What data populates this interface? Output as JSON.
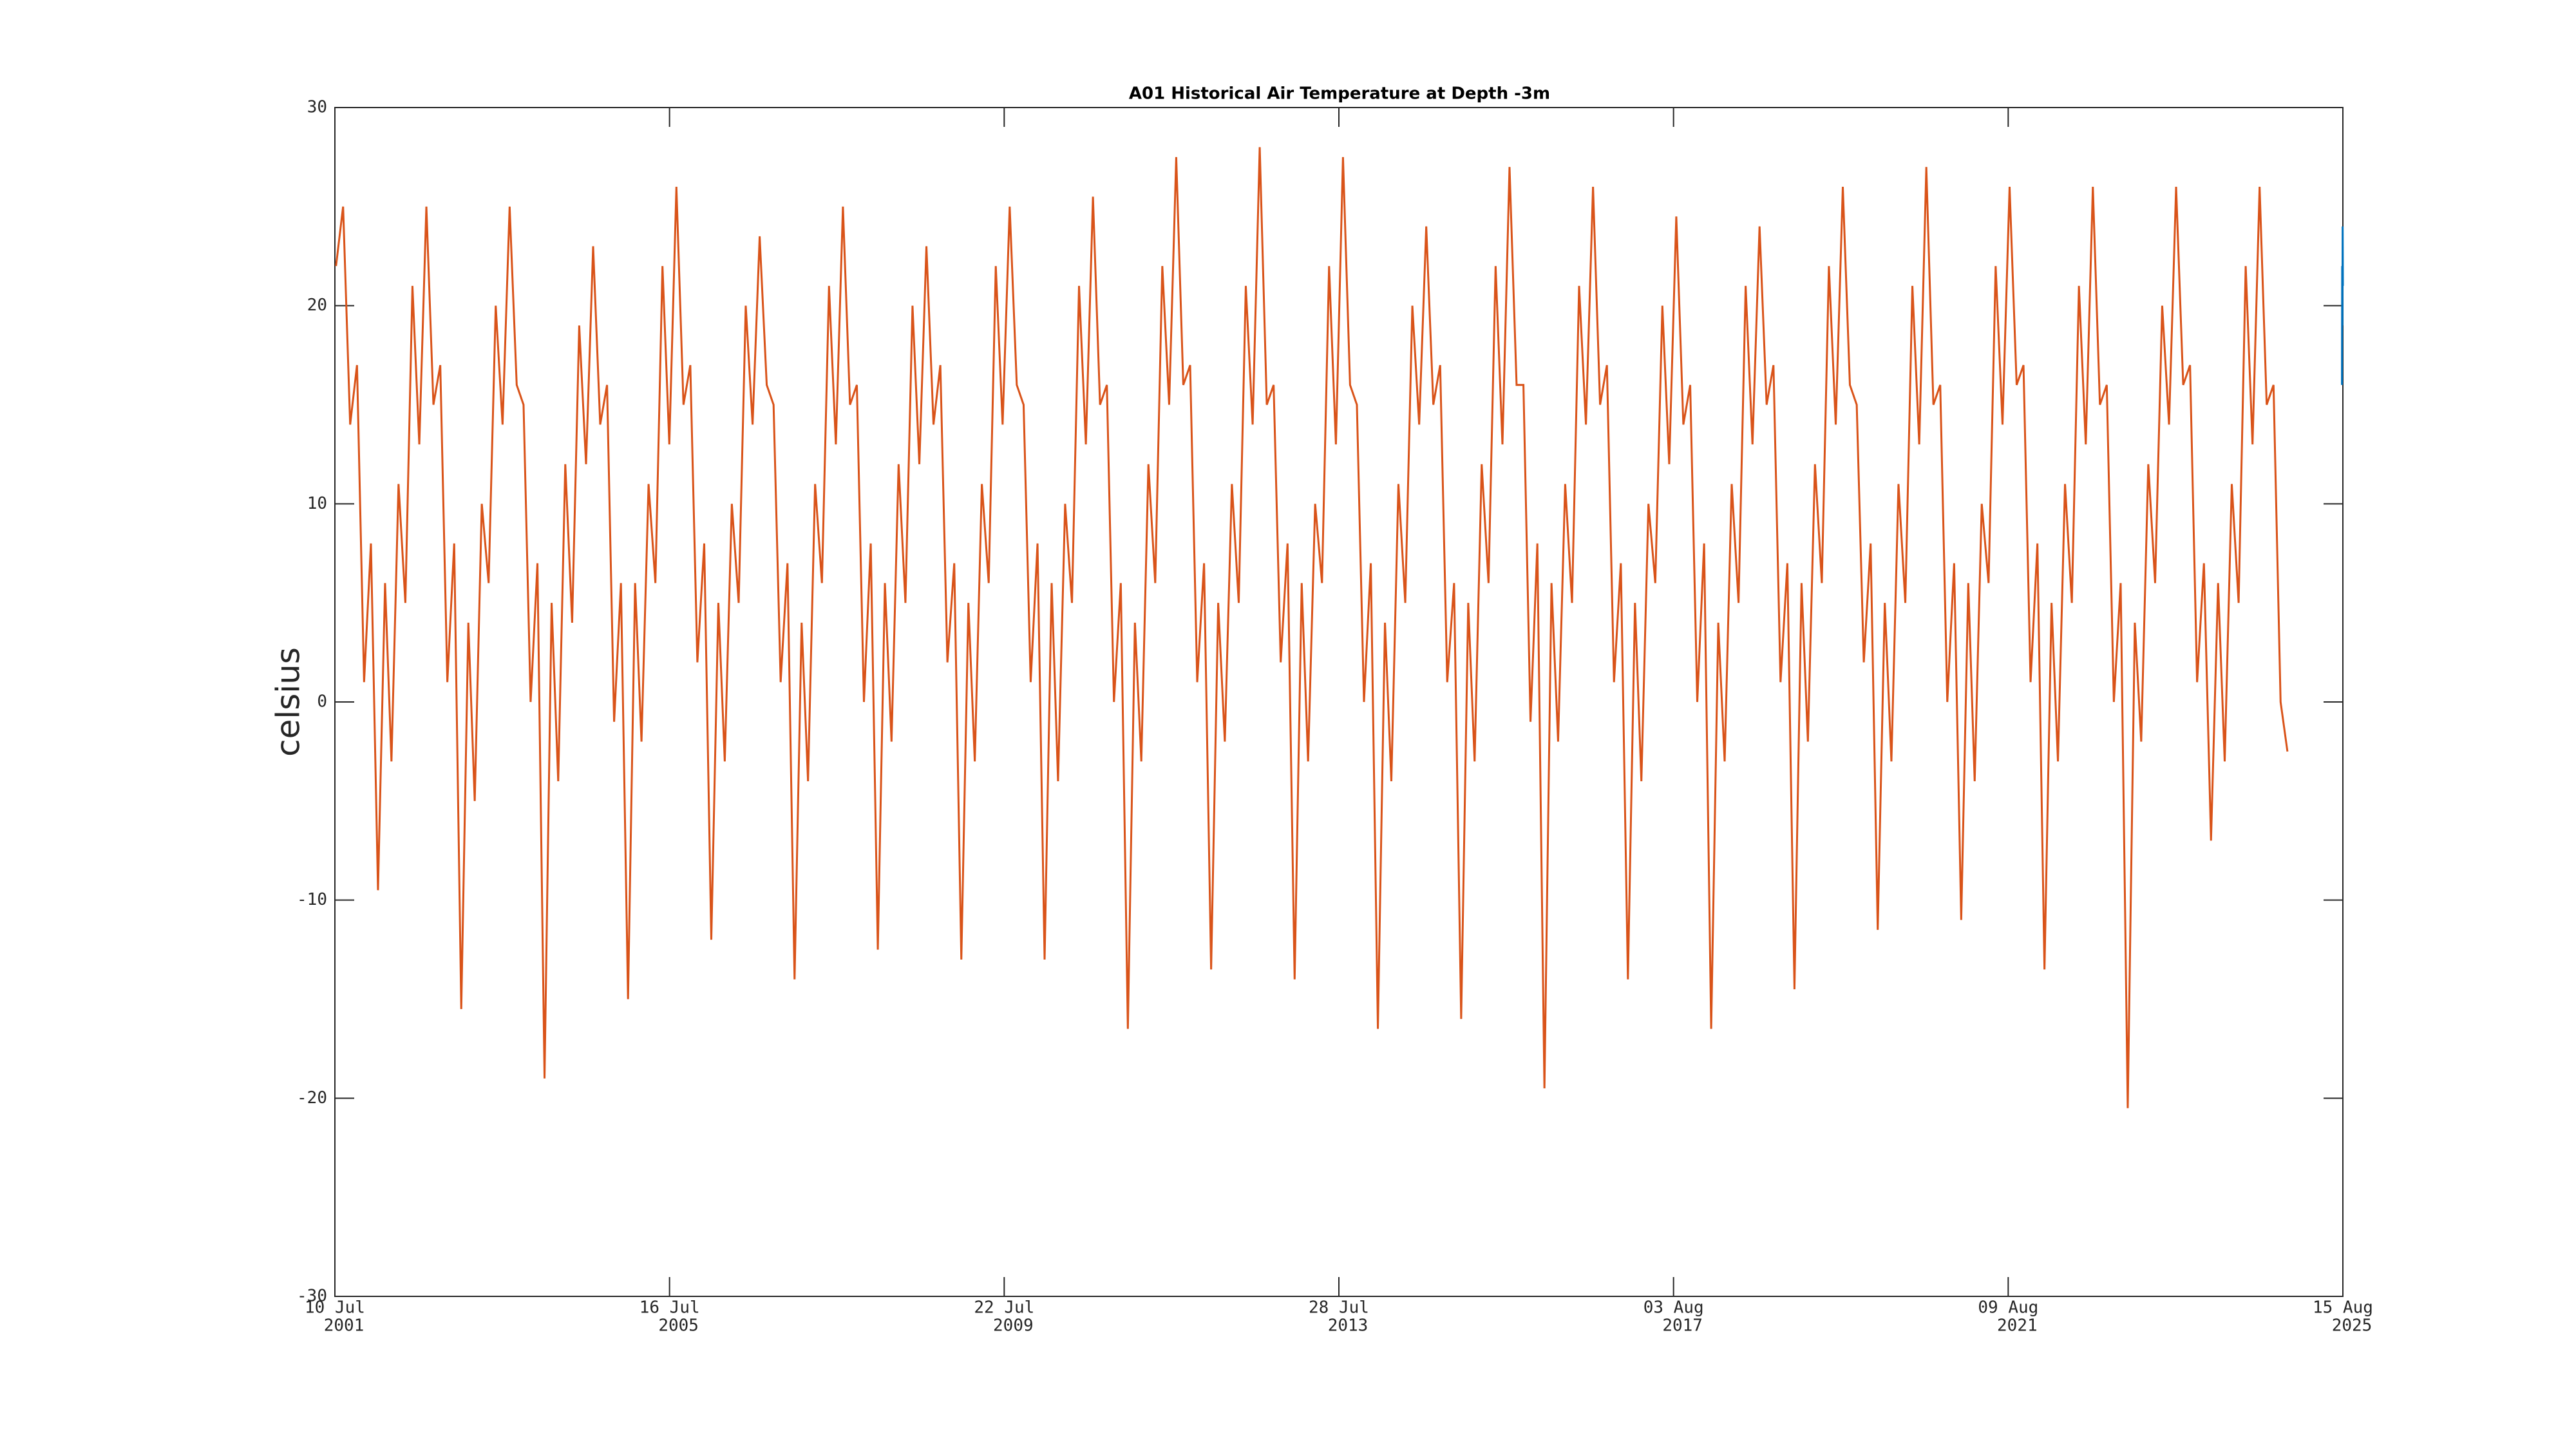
{
  "chart_data": {
    "type": "line",
    "title": "A01 Historical Air Temperature at Depth -3m",
    "y_label": "celsius",
    "xlim": [
      "2001-07-10",
      "2025-08-15"
    ],
    "xticks": [
      {
        "value": "2001-07-10",
        "label": [
          "10 Jul",
          "2001"
        ]
      },
      {
        "value": "2005-07-16",
        "label": [
          "16 Jul",
          "2005"
        ]
      },
      {
        "value": "2009-07-22",
        "label": [
          "22 Jul",
          "2009"
        ]
      },
      {
        "value": "2013-07-28",
        "label": [
          "28 Jul",
          "2013"
        ]
      },
      {
        "value": "2017-08-03",
        "label": [
          "03 Aug",
          "2017"
        ]
      },
      {
        "value": "2021-08-09",
        "label": [
          "09 Aug",
          "2021"
        ]
      },
      {
        "value": "2025-08-15",
        "label": [
          "15 Aug",
          "2025"
        ]
      }
    ],
    "ylim": [
      -30,
      30
    ],
    "yticks": [
      -30,
      -20,
      -10,
      0,
      10,
      20,
      30
    ],
    "series": [
      {
        "color": "#d95319",
        "x": [
          "2001-07-15",
          "2001-08-15",
          "2001-09-15",
          "2001-10-15",
          "2001-11-15",
          "2001-12-15",
          "2002-01-15",
          "2002-02-15",
          "2002-03-15",
          "2002-04-15",
          "2002-05-15",
          "2002-06-15",
          "2002-07-15",
          "2002-08-15",
          "2002-09-15",
          "2002-10-15",
          "2002-11-15",
          "2002-12-15",
          "2003-01-15",
          "2003-02-15",
          "2003-03-15",
          "2003-04-15",
          "2003-05-15",
          "2003-06-15",
          "2003-07-15",
          "2003-08-15",
          "2003-09-15",
          "2003-10-15",
          "2003-11-15",
          "2003-12-15",
          "2004-01-15",
          "2004-02-15",
          "2004-03-15",
          "2004-04-15",
          "2004-05-15",
          "2004-06-15",
          "2004-07-15",
          "2004-08-15",
          "2004-09-15",
          "2004-10-15",
          "2004-11-15",
          "2004-12-15",
          "2005-01-15",
          "2005-02-15",
          "2005-03-15",
          "2005-04-15",
          "2005-05-15",
          "2005-06-15",
          "2005-07-15",
          "2005-08-15",
          "2005-09-15",
          "2005-10-15",
          "2005-11-15",
          "2005-12-15",
          "2006-01-15",
          "2006-02-15",
          "2006-03-15",
          "2006-04-15",
          "2006-05-15",
          "2006-06-15",
          "2006-07-15",
          "2006-08-15",
          "2006-09-15",
          "2006-10-15",
          "2006-11-15",
          "2006-12-15",
          "2007-01-15",
          "2007-02-15",
          "2007-03-15",
          "2007-04-15",
          "2007-05-15",
          "2007-06-15",
          "2007-07-15",
          "2007-08-15",
          "2007-09-15",
          "2007-10-15",
          "2007-11-15",
          "2007-12-15",
          "2008-01-15",
          "2008-02-15",
          "2008-03-15",
          "2008-04-15",
          "2008-05-15",
          "2008-06-15",
          "2008-07-15",
          "2008-08-15",
          "2008-09-15",
          "2008-10-15",
          "2008-11-15",
          "2008-12-15",
          "2009-01-15",
          "2009-02-15",
          "2009-03-15",
          "2009-04-15",
          "2009-05-15",
          "2009-06-15",
          "2009-07-15",
          "2009-08-15",
          "2009-09-15",
          "2009-10-15",
          "2009-11-15",
          "2009-12-15",
          "2010-01-15",
          "2010-02-15",
          "2010-03-15",
          "2010-04-15",
          "2010-05-15",
          "2010-06-15",
          "2010-07-15",
          "2010-08-15",
          "2010-09-15",
          "2010-10-15",
          "2010-11-15",
          "2010-12-15",
          "2011-01-15",
          "2011-02-15",
          "2011-03-15",
          "2011-04-15",
          "2011-05-15",
          "2011-06-15",
          "2011-07-15",
          "2011-08-15",
          "2011-09-15",
          "2011-10-15",
          "2011-11-15",
          "2011-12-15",
          "2012-01-15",
          "2012-02-15",
          "2012-03-15",
          "2012-04-15",
          "2012-05-15",
          "2012-06-15",
          "2012-07-15",
          "2012-08-15",
          "2012-09-15",
          "2012-10-15",
          "2012-11-15",
          "2012-12-15",
          "2013-01-15",
          "2013-02-15",
          "2013-03-15",
          "2013-04-15",
          "2013-05-15",
          "2013-06-15",
          "2013-07-15",
          "2013-08-15",
          "2013-09-15",
          "2013-10-15",
          "2013-11-15",
          "2013-12-15",
          "2014-01-15",
          "2014-02-15",
          "2014-03-15",
          "2014-04-15",
          "2014-05-15",
          "2014-06-15",
          "2014-07-15",
          "2014-08-15",
          "2014-09-15",
          "2014-10-15",
          "2014-11-15",
          "2014-12-15",
          "2015-01-15",
          "2015-02-15",
          "2015-03-15",
          "2015-04-15",
          "2015-05-15",
          "2015-06-15",
          "2015-07-15",
          "2015-08-15",
          "2015-09-15",
          "2015-10-15",
          "2015-11-15",
          "2015-12-15",
          "2016-01-15",
          "2016-02-15",
          "2016-03-15",
          "2016-04-15",
          "2016-05-15",
          "2016-06-15",
          "2016-07-15",
          "2016-08-15",
          "2016-09-15",
          "2016-10-15",
          "2016-11-15",
          "2016-12-15",
          "2017-01-15",
          "2017-02-15",
          "2017-03-15",
          "2017-04-15",
          "2017-05-15",
          "2017-06-15",
          "2017-07-15",
          "2017-08-15",
          "2017-09-15",
          "2017-10-15",
          "2017-11-15",
          "2017-12-15",
          "2018-01-15",
          "2018-02-15",
          "2018-03-15",
          "2018-04-15",
          "2018-05-15",
          "2018-06-15",
          "2018-07-15",
          "2018-08-15",
          "2018-09-15",
          "2018-10-15",
          "2018-11-15",
          "2018-12-15",
          "2019-01-15",
          "2019-02-15",
          "2019-03-15",
          "2019-04-15",
          "2019-05-15",
          "2019-06-15",
          "2019-07-15",
          "2019-08-15",
          "2019-09-15",
          "2019-10-15",
          "2019-11-15",
          "2019-12-15",
          "2020-01-15",
          "2020-02-15",
          "2020-03-15",
          "2020-04-15",
          "2020-05-15",
          "2020-06-15",
          "2020-07-15",
          "2020-08-15",
          "2020-09-15",
          "2020-10-15",
          "2020-11-15",
          "2020-12-15",
          "2021-01-15",
          "2021-02-15",
          "2021-03-15",
          "2021-04-15",
          "2021-05-15",
          "2021-06-15",
          "2021-07-15",
          "2021-08-15",
          "2021-09-15",
          "2021-10-15",
          "2021-11-15",
          "2021-12-15",
          "2022-01-15",
          "2022-02-15",
          "2022-03-15",
          "2022-04-15",
          "2022-05-15",
          "2022-06-15",
          "2022-07-15",
          "2022-08-15",
          "2022-09-15",
          "2022-10-15",
          "2022-11-15",
          "2022-12-15",
          "2023-01-15",
          "2023-02-15",
          "2023-03-15",
          "2023-04-15",
          "2023-05-15",
          "2023-06-15",
          "2023-07-15",
          "2023-08-15",
          "2023-09-15",
          "2023-10-15",
          "2023-11-15",
          "2023-12-15",
          "2024-01-15",
          "2024-02-15",
          "2024-03-15",
          "2024-04-15",
          "2024-05-15",
          "2024-06-15",
          "2024-07-15",
          "2024-08-15",
          "2024-09-15",
          "2024-10-15",
          "2024-11-15",
          "2024-12-15"
        ],
        "values": [
          22,
          25,
          14,
          17,
          1,
          8,
          -9.5,
          6,
          -3,
          11,
          5,
          21,
          13,
          25,
          15,
          17,
          1,
          8,
          -15.5,
          4,
          -5,
          10,
          6,
          20,
          14,
          25,
          16,
          15,
          0,
          7,
          -19,
          5,
          -4,
          12,
          4,
          19,
          12,
          23,
          14,
          16,
          -1,
          6,
          -15,
          6,
          -2,
          11,
          6,
          22,
          13,
          26,
          15,
          17,
          2,
          8,
          -12,
          5,
          -3,
          10,
          5,
          20,
          14,
          23.5,
          16,
          15,
          1,
          7,
          -14,
          4,
          -4,
          11,
          6,
          21,
          13,
          25,
          15,
          16,
          0,
          8,
          -12.5,
          6,
          -2,
          12,
          5,
          20,
          12,
          23,
          14,
          17,
          2,
          7,
          -13,
          5,
          -3,
          11,
          6,
          22,
          14,
          25,
          16,
          15,
          1,
          8,
          -13,
          6,
          -4,
          10,
          5,
          21,
          13,
          25.5,
          15,
          16,
          0,
          6,
          -16.5,
          4,
          -3,
          12,
          6,
          22,
          15,
          27.5,
          16,
          17,
          1,
          7,
          -13.5,
          5,
          -2,
          11,
          5,
          21,
          14,
          28,
          15,
          16,
          2,
          8,
          -14,
          6,
          -3,
          10,
          6,
          22,
          13,
          27.5,
          16,
          15,
          0,
          7,
          -16.5,
          4,
          -4,
          11,
          5,
          20,
          14,
          24,
          15,
          17,
          1,
          6,
          -16,
          5,
          -3,
          12,
          6,
          22,
          13,
          27,
          16,
          16,
          -1,
          8,
          -19.5,
          6,
          -2,
          11,
          5,
          21,
          14,
          26,
          15,
          17,
          1,
          7,
          -14,
          5,
          -4,
          10,
          6,
          20,
          12,
          24.5,
          14,
          16,
          0,
          8,
          -16.5,
          4,
          -3,
          11,
          5,
          21,
          13,
          24,
          15,
          17,
          1,
          7,
          -14.5,
          6,
          -2,
          12,
          6,
          22,
          14,
          26,
          16,
          15,
          2,
          8,
          -11.5,
          5,
          -3,
          11,
          5,
          21,
          13,
          27,
          15,
          16,
          0,
          7,
          -11,
          6,
          -4,
          10,
          6,
          22,
          14,
          26,
          16,
          17,
          1,
          8,
          -13.5,
          5,
          -3,
          11,
          5,
          21,
          13,
          26,
          15,
          16,
          0,
          6,
          -20.5,
          4,
          -2,
          12,
          6,
          20,
          14,
          26,
          16,
          17,
          1,
          7,
          -7,
          6,
          -3,
          11,
          5,
          22,
          13,
          26,
          15,
          16,
          0,
          -2.5
        ]
      },
      {
        "color": "#0072bd",
        "x": [
          "2025-08-11",
          "2025-08-12",
          "2025-08-13",
          "2025-08-14",
          "2025-08-15"
        ],
        "values": [
          16,
          22,
          19,
          24,
          21
        ]
      }
    ]
  }
}
